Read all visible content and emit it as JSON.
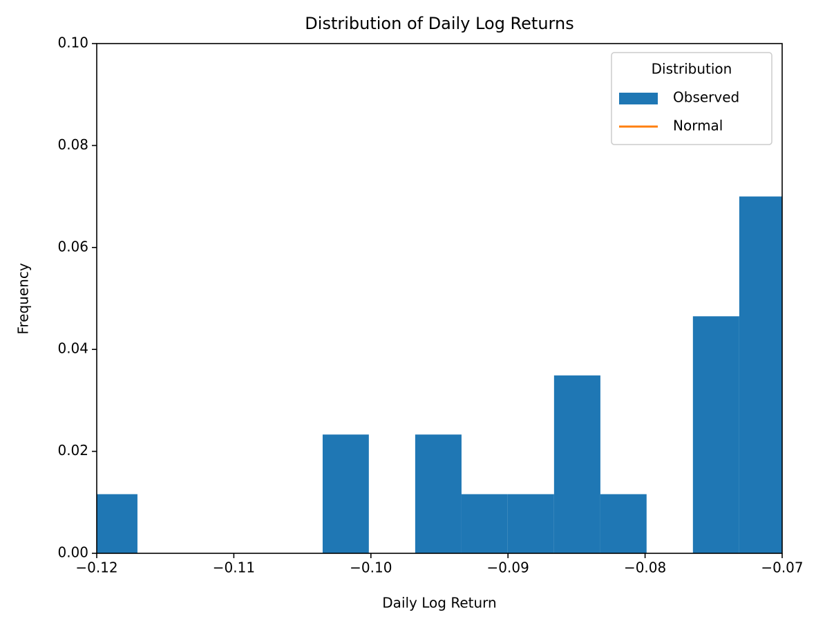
{
  "chart_data": {
    "type": "histogram",
    "title": "Distribution of Daily Log Returns",
    "x_label": "Daily Log Return",
    "y_label": "Frequency",
    "bins": [
      -0.12041,
      -0.11703,
      -0.11366,
      -0.11028,
      -0.1069,
      -0.10352,
      -0.10015,
      -0.09677,
      -0.09339,
      -0.09002,
      -0.08664,
      -0.08326,
      -0.07989,
      -0.07651,
      -0.07313,
      -0.06976
    ],
    "series": [
      {
        "name": "Observed",
        "color": "#1f77b4",
        "values": [
          0.0116,
          0,
          0,
          0,
          0,
          0.0233,
          0,
          0.0233,
          0.0116,
          0.0116,
          0.0349,
          0.0116,
          0,
          0.0465,
          0.07
        ]
      },
      {
        "name": "Normal",
        "color": "#ff7f0e",
        "type": "line"
      }
    ],
    "legend_title": "Distribution",
    "legend_position": "upper right",
    "xlim": [
      -0.12,
      -0.07
    ],
    "xticks": [
      {
        "value": -0.12,
        "label": "−0.12"
      },
      {
        "value": -0.11,
        "label": "−0.11"
      },
      {
        "value": -0.1,
        "label": "−0.10"
      },
      {
        "value": -0.09,
        "label": "−0.09"
      },
      {
        "value": -0.08,
        "label": "−0.08"
      },
      {
        "value": -0.07,
        "label": "−0.07"
      }
    ],
    "ylim": [
      0,
      0.1
    ],
    "yticks": [
      {
        "value": 0,
        "label": "0.00"
      },
      {
        "value": 0.02,
        "label": "0.02"
      },
      {
        "value": 0.04,
        "label": "0.04"
      },
      {
        "value": 0.06,
        "label": "0.06"
      },
      {
        "value": 0.08,
        "label": "0.08"
      },
      {
        "value": 0.1,
        "label": "0.10"
      }
    ],
    "grid": false
  }
}
